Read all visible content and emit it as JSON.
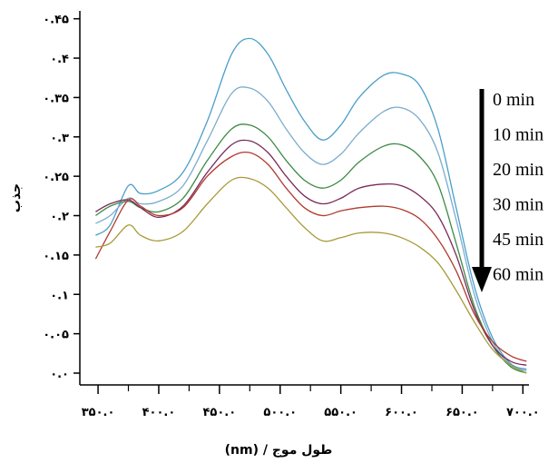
{
  "chart_data": {
    "type": "line",
    "xlabel": "(nm) / طول موج",
    "ylabel": "جذب",
    "xlim": [
      335,
      705
    ],
    "ylim": [
      -0.015,
      0.46
    ],
    "x_ticks": [
      {
        "value": 350,
        "label": "۳۵۰.۰"
      },
      {
        "value": 400,
        "label": "۴۰۰.۰"
      },
      {
        "value": 450,
        "label": "۴۵۰.۰"
      },
      {
        "value": 500,
        "label": "۵۰۰.۰"
      },
      {
        "value": 550,
        "label": "۵۵۰.۰"
      },
      {
        "value": 600,
        "label": "۶۰۰.۰"
      },
      {
        "value": 650,
        "label": "۶۵۰.۰"
      },
      {
        "value": 700,
        "label": "۷۰۰.۰"
      }
    ],
    "x_minor_ticks": [
      375,
      425,
      475,
      525,
      575,
      625,
      675
    ],
    "y_ticks": [
      {
        "value": 0.0,
        "label": "۰.۰"
      },
      {
        "value": 0.05,
        "label": "۰.۰۵"
      },
      {
        "value": 0.1,
        "label": "۰.۱"
      },
      {
        "value": 0.15,
        "label": "۰.۱۵"
      },
      {
        "value": 0.2,
        "label": "۰.۲"
      },
      {
        "value": 0.25,
        "label": "۰.۲۵"
      },
      {
        "value": 0.3,
        "label": "۰.۳"
      },
      {
        "value": 0.35,
        "label": "۰.۳۵"
      },
      {
        "value": 0.4,
        "label": "۰.۴"
      },
      {
        "value": 0.45,
        "label": "۰.۴۵"
      }
    ],
    "legend_position": "right, with downward arrow",
    "grid": false,
    "series": [
      {
        "name": "0 min",
        "color": "#4a9fc9",
        "points": [
          [
            348,
            0.175
          ],
          [
            360,
            0.188
          ],
          [
            375,
            0.238
          ],
          [
            385,
            0.228
          ],
          [
            400,
            0.232
          ],
          [
            420,
            0.255
          ],
          [
            440,
            0.32
          ],
          [
            460,
            0.405
          ],
          [
            475,
            0.425
          ],
          [
            490,
            0.405
          ],
          [
            505,
            0.36
          ],
          [
            520,
            0.32
          ],
          [
            535,
            0.296
          ],
          [
            550,
            0.315
          ],
          [
            565,
            0.35
          ],
          [
            585,
            0.378
          ],
          [
            600,
            0.38
          ],
          [
            615,
            0.365
          ],
          [
            630,
            0.31
          ],
          [
            645,
            0.21
          ],
          [
            660,
            0.11
          ],
          [
            675,
            0.045
          ],
          [
            690,
            0.012
          ],
          [
            703,
            0.005
          ]
        ]
      },
      {
        "name": "10 min",
        "color": "#7aaccd",
        "points": [
          [
            348,
            0.19
          ],
          [
            360,
            0.2
          ],
          [
            375,
            0.222
          ],
          [
            385,
            0.215
          ],
          [
            400,
            0.218
          ],
          [
            420,
            0.238
          ],
          [
            440,
            0.295
          ],
          [
            460,
            0.355
          ],
          [
            475,
            0.362
          ],
          [
            490,
            0.345
          ],
          [
            505,
            0.31
          ],
          [
            520,
            0.28
          ],
          [
            535,
            0.265
          ],
          [
            550,
            0.278
          ],
          [
            565,
            0.305
          ],
          [
            585,
            0.332
          ],
          [
            600,
            0.337
          ],
          [
            615,
            0.322
          ],
          [
            630,
            0.28
          ],
          [
            645,
            0.195
          ],
          [
            660,
            0.1
          ],
          [
            675,
            0.04
          ],
          [
            690,
            0.01
          ],
          [
            703,
            0.003
          ]
        ]
      },
      {
        "name": "20 min",
        "color": "#3d8a45",
        "points": [
          [
            348,
            0.2
          ],
          [
            360,
            0.212
          ],
          [
            375,
            0.218
          ],
          [
            385,
            0.21
          ],
          [
            400,
            0.205
          ],
          [
            420,
            0.222
          ],
          [
            440,
            0.27
          ],
          [
            460,
            0.31
          ],
          [
            475,
            0.315
          ],
          [
            490,
            0.3
          ],
          [
            505,
            0.27
          ],
          [
            520,
            0.245
          ],
          [
            535,
            0.235
          ],
          [
            550,
            0.245
          ],
          [
            565,
            0.268
          ],
          [
            585,
            0.288
          ],
          [
            600,
            0.29
          ],
          [
            615,
            0.275
          ],
          [
            630,
            0.24
          ],
          [
            645,
            0.165
          ],
          [
            660,
            0.085
          ],
          [
            675,
            0.035
          ],
          [
            690,
            0.008
          ],
          [
            703,
            0.0
          ]
        ]
      },
      {
        "name": "30 min",
        "color": "#7a2a5a",
        "points": [
          [
            348,
            0.205
          ],
          [
            360,
            0.215
          ],
          [
            375,
            0.22
          ],
          [
            385,
            0.21
          ],
          [
            400,
            0.198
          ],
          [
            420,
            0.212
          ],
          [
            440,
            0.255
          ],
          [
            460,
            0.29
          ],
          [
            475,
            0.295
          ],
          [
            490,
            0.28
          ],
          [
            505,
            0.25
          ],
          [
            520,
            0.225
          ],
          [
            535,
            0.215
          ],
          [
            550,
            0.222
          ],
          [
            565,
            0.235
          ],
          [
            585,
            0.24
          ],
          [
            600,
            0.238
          ],
          [
            615,
            0.225
          ],
          [
            630,
            0.2
          ],
          [
            645,
            0.15
          ],
          [
            660,
            0.08
          ],
          [
            675,
            0.035
          ],
          [
            690,
            0.015
          ],
          [
            703,
            0.01
          ]
        ]
      },
      {
        "name": "45 min",
        "color": "#b03a2e",
        "points": [
          [
            348,
            0.145
          ],
          [
            360,
            0.18
          ],
          [
            375,
            0.22
          ],
          [
            385,
            0.212
          ],
          [
            400,
            0.2
          ],
          [
            420,
            0.21
          ],
          [
            440,
            0.25
          ],
          [
            460,
            0.275
          ],
          [
            475,
            0.28
          ],
          [
            490,
            0.265
          ],
          [
            505,
            0.235
          ],
          [
            520,
            0.21
          ],
          [
            535,
            0.2
          ],
          [
            550,
            0.206
          ],
          [
            565,
            0.21
          ],
          [
            585,
            0.212
          ],
          [
            600,
            0.208
          ],
          [
            615,
            0.196
          ],
          [
            630,
            0.17
          ],
          [
            645,
            0.13
          ],
          [
            660,
            0.075
          ],
          [
            675,
            0.04
          ],
          [
            690,
            0.022
          ],
          [
            703,
            0.015
          ]
        ]
      },
      {
        "name": "60 min",
        "color": "#a89a3a",
        "points": [
          [
            348,
            0.16
          ],
          [
            360,
            0.165
          ],
          [
            375,
            0.188
          ],
          [
            385,
            0.175
          ],
          [
            400,
            0.168
          ],
          [
            420,
            0.18
          ],
          [
            440,
            0.215
          ],
          [
            460,
            0.245
          ],
          [
            475,
            0.247
          ],
          [
            490,
            0.235
          ],
          [
            505,
            0.21
          ],
          [
            520,
            0.185
          ],
          [
            535,
            0.168
          ],
          [
            550,
            0.172
          ],
          [
            565,
            0.178
          ],
          [
            585,
            0.178
          ],
          [
            600,
            0.172
          ],
          [
            615,
            0.16
          ],
          [
            630,
            0.14
          ],
          [
            645,
            0.105
          ],
          [
            660,
            0.065
          ],
          [
            675,
            0.03
          ],
          [
            690,
            0.01
          ],
          [
            703,
            0.0
          ]
        ]
      }
    ]
  }
}
